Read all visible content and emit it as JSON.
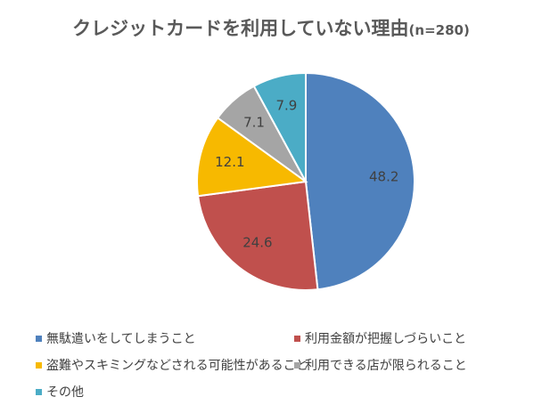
{
  "chart_data": {
    "type": "pie",
    "title": "クレジットカードを利用していない理由",
    "subtitle": "(n=280)",
    "categories": [
      "無駄遣いをしてしまうこと",
      "利用金額が把握しづらいこと",
      "盗難やスキミングなどされる可能性があること",
      "利用できる店が限られること",
      "その他"
    ],
    "values": [
      48.2,
      24.6,
      12.1,
      7.1,
      7.9
    ],
    "colors": [
      "#4f81bd",
      "#c0504d",
      "#f7b900",
      "#a5a5a5",
      "#4bacc6"
    ],
    "legend_position": "bottom",
    "data_labels": true
  }
}
